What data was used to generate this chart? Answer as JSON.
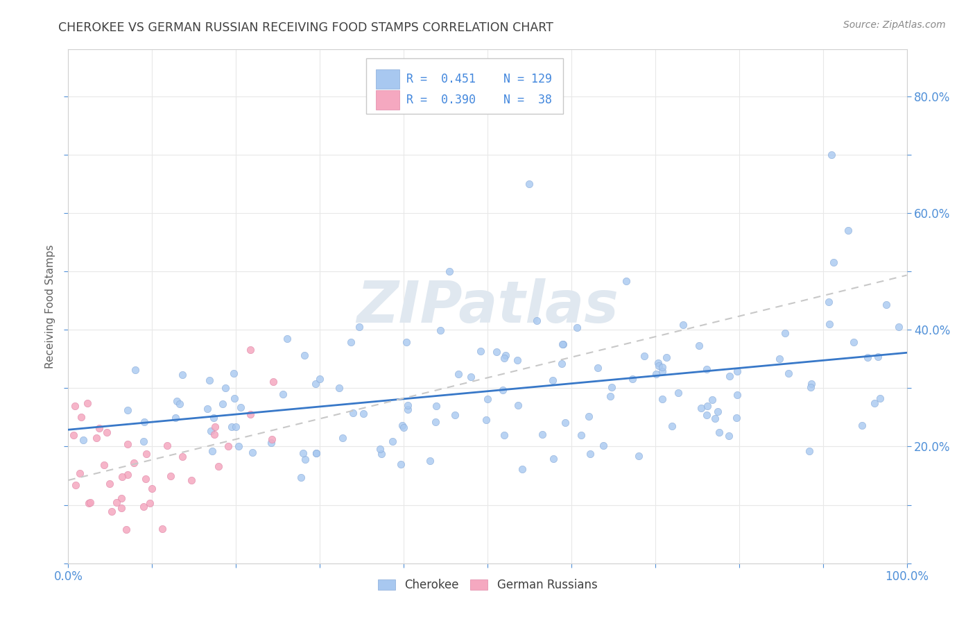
{
  "title": "CHEROKEE VS GERMAN RUSSIAN RECEIVING FOOD STAMPS CORRELATION CHART",
  "source": "Source: ZipAtlas.com",
  "ylabel": "Receiving Food Stamps",
  "watermark": "ZIPatlas",
  "cherokee_R": 0.451,
  "cherokee_N": 129,
  "german_R": 0.39,
  "german_N": 38,
  "cherokee_color": "#a8c8f0",
  "cherokee_edge": "#88aad8",
  "german_color": "#f5a8c0",
  "german_edge": "#e088a8",
  "cherokee_line_color": "#3878c8",
  "german_line_color": "#c8c8c8",
  "grid_color": "#e8e8e8",
  "background_color": "#ffffff",
  "title_color": "#404040",
  "source_color": "#888888",
  "tick_color": "#5090d8",
  "ylabel_color": "#606060",
  "legend_text_color": "#404040",
  "legend_R_color": "#4488dd",
  "xlim": [
    0,
    1
  ],
  "ylim": [
    0,
    0.88
  ],
  "ytick_vals": [
    0.0,
    0.1,
    0.2,
    0.3,
    0.4,
    0.5,
    0.6,
    0.7,
    0.8
  ],
  "ytick_labels_right": [
    "",
    "",
    "20.0%",
    "",
    "40.0%",
    "",
    "60.0%",
    "",
    "80.0%"
  ],
  "xtick_vals": [
    0.0,
    0.1,
    0.2,
    0.3,
    0.4,
    0.5,
    0.6,
    0.7,
    0.8,
    0.9,
    1.0
  ],
  "xtick_labels": [
    "0.0%",
    "",
    "",
    "",
    "",
    "",
    "",
    "",
    "",
    "",
    "100.0%"
  ]
}
